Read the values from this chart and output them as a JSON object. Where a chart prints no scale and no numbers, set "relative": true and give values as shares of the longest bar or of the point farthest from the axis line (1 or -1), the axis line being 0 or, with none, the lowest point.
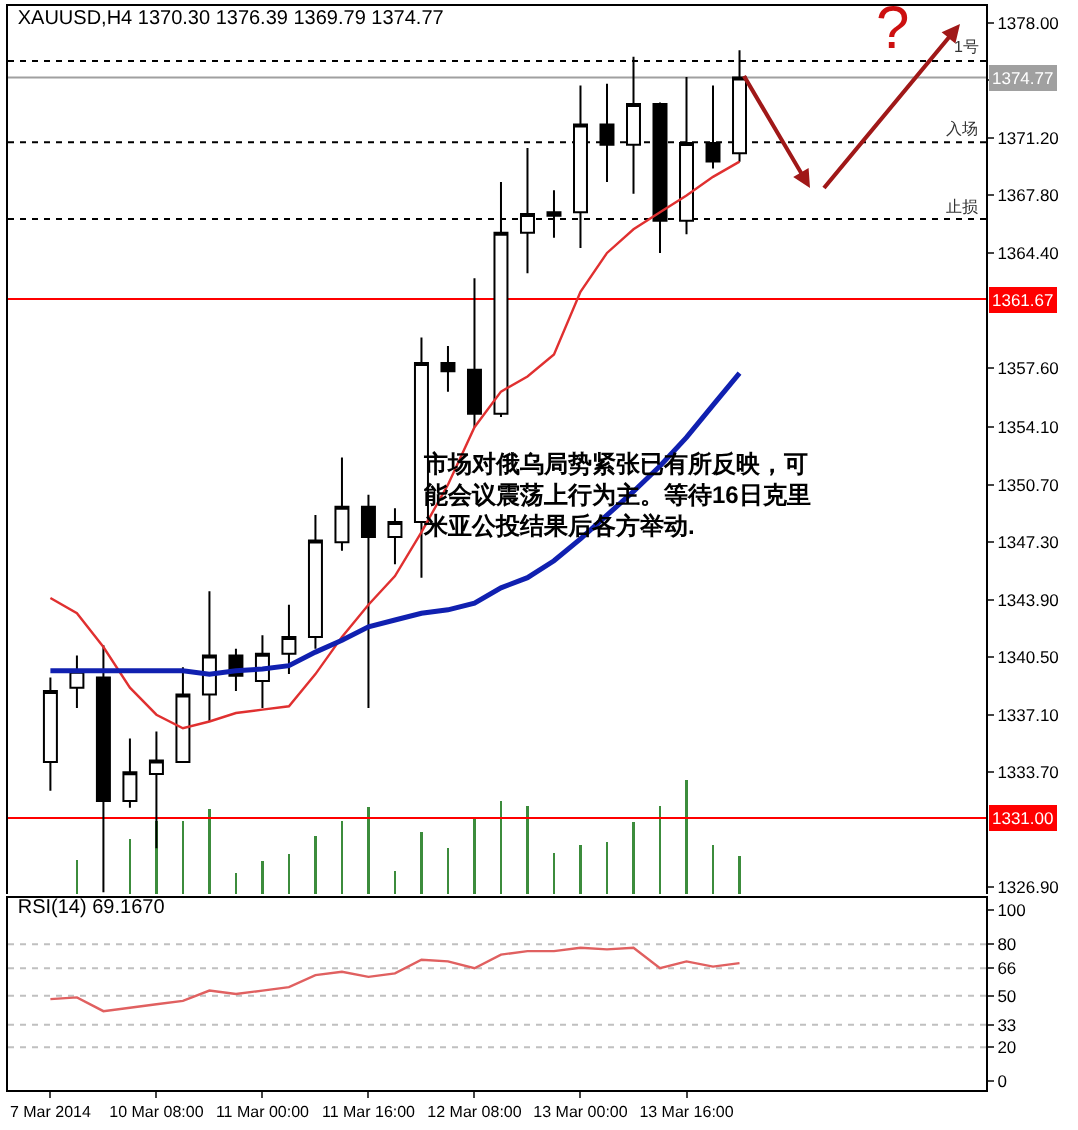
{
  "chart_data": [
    {
      "type": "candlestick",
      "title": "XAUUSD,H4 1370.30 1376.39 1369.79 1374.77",
      "categories": [
        null,
        null,
        null,
        null,
        null,
        null,
        null,
        null,
        null,
        null,
        null,
        null,
        null,
        null,
        null,
        null,
        null,
        null,
        null,
        null,
        null,
        null,
        null,
        null,
        null,
        null,
        null
      ],
      "ohlc": [
        [
          1334.3,
          1339.3,
          1332.6,
          1338.5
        ],
        [
          1338.7,
          1340.6,
          1337.5,
          1339.7
        ],
        [
          1339.3,
          1341.2,
          1326.6,
          1332.0
        ],
        [
          1332.0,
          1335.7,
          1331.6,
          1333.7
        ],
        [
          1333.6,
          1336.1,
          1329.2,
          1334.4
        ],
        [
          1334.3,
          1339.9,
          1334.3,
          1338.3
        ],
        [
          1338.3,
          1344.4,
          1336.7,
          1340.6
        ],
        [
          1340.6,
          1341.0,
          1338.5,
          1339.4
        ],
        [
          1339.1,
          1341.8,
          1337.5,
          1340.7
        ],
        [
          1340.7,
          1343.6,
          1339.5,
          1341.7
        ],
        [
          1341.7,
          1348.9,
          1341.0,
          1347.4
        ],
        [
          1347.3,
          1352.3,
          1346.8,
          1349.4
        ],
        [
          1349.4,
          1350.1,
          1337.5,
          1347.6
        ],
        [
          1347.6,
          1349.3,
          1346.0,
          1348.5
        ],
        [
          1348.5,
          1359.4,
          1345.2,
          1357.9
        ],
        [
          1357.9,
          1358.9,
          1356.2,
          1357.4
        ],
        [
          1357.5,
          1362.9,
          1354.1,
          1354.9
        ],
        [
          1354.9,
          1368.6,
          1354.7,
          1365.6
        ],
        [
          1365.6,
          1370.6,
          1363.2,
          1366.7
        ],
        [
          1366.8,
          1368.1,
          1365.3,
          1366.6
        ],
        [
          1366.8,
          1374.3,
          1364.7,
          1372.0
        ],
        [
          1372.0,
          1374.4,
          1368.6,
          1370.8
        ],
        [
          1370.8,
          1376.0,
          1367.9,
          1373.2
        ],
        [
          1373.2,
          1373.3,
          1364.4,
          1366.3
        ],
        [
          1366.3,
          1374.8,
          1365.5,
          1370.9
        ],
        [
          1370.9,
          1374.3,
          1369.4,
          1369.8
        ],
        [
          1370.3,
          1376.39,
          1369.79,
          1374.77
        ]
      ],
      "series": [
        {
          "type": "line",
          "color": "#e03030",
          "values": [
            1344.0,
            1343.1,
            1341.1,
            1338.7,
            1337.1,
            1336.3,
            1336.7,
            1337.2,
            1337.4,
            1337.6,
            1339.5,
            1341.7,
            1343.6,
            1345.3,
            1347.9,
            1350.7,
            1354.1,
            1356.2,
            1357.1,
            1358.4,
            1362.1,
            1364.4,
            1365.8,
            1366.8,
            1367.8,
            1368.9,
            1369.8
          ]
        },
        {
          "type": "line",
          "color": "#1020b0",
          "values": [
            1339.7,
            1339.7,
            1339.7,
            1339.7,
            1339.7,
            1339.7,
            1339.5,
            1339.7,
            1339.8,
            1340.0,
            1340.8,
            1341.5,
            1342.3,
            1342.7,
            1343.1,
            1343.3,
            1343.7,
            1344.6,
            1345.2,
            1346.2,
            1347.5,
            1348.9,
            1350.3,
            1351.8,
            1353.5,
            1355.4,
            1357.3
          ]
        }
      ],
      "ylim": [
        1326.5,
        1379.0
      ],
      "yticks": [
        {
          "value": 1378.0,
          "label": "1378.00"
        },
        {
          "value": 1374.6,
          "label": null
        },
        {
          "value": 1371.2,
          "label": "1371.20"
        },
        {
          "value": 1367.8,
          "label": "1367.80"
        },
        {
          "value": 1364.4,
          "label": "1364.40"
        },
        {
          "value": 1357.6,
          "label": "1357.60"
        },
        {
          "value": 1354.1,
          "label": "1354.10"
        },
        {
          "value": 1350.7,
          "label": "1350.70"
        },
        {
          "value": 1347.3,
          "label": "1347.30"
        },
        {
          "value": 1343.9,
          "label": "1343.90"
        },
        {
          "value": 1340.5,
          "label": "1340.50"
        },
        {
          "value": 1337.1,
          "label": "1337.10"
        },
        {
          "value": 1333.7,
          "label": "1333.70"
        },
        {
          "value": 1326.9,
          "label": "1326.90"
        }
      ],
      "ref_lines": [
        {
          "axis": "y",
          "value": 1361.67,
          "label": "1361.67",
          "color": "#ff0000",
          "line_style": "solid"
        },
        {
          "axis": "y",
          "value": 1331.0,
          "label": "1331.00",
          "color": "#ff0000",
          "line_style": "solid"
        },
        {
          "axis": "y",
          "value": 1374.77,
          "label": "1374.77",
          "color": "#a0a0a0",
          "line_style": "solid"
        },
        {
          "axis": "y",
          "value": 1375.75,
          "label": "1号",
          "color": "#000000",
          "line_style": "dotted"
        },
        {
          "axis": "y",
          "value": 1370.95,
          "label": "入场",
          "color": "#000000",
          "line_style": "dotted"
        },
        {
          "axis": "y",
          "value": 1366.4,
          "label": "止损",
          "color": "#000000",
          "line_style": "dotted"
        }
      ],
      "annotations": [
        "市场对俄乌局势紧张已有所反映，可能会议震荡上行为主。等待16日克里米亚公投结果后各方举动.",
        "?"
      ],
      "tick_labels": "y"
    },
    {
      "type": "bar",
      "relative": true,
      "color": "#3c8c3c",
      "tick_labels": false,
      "categories": [
        null,
        null,
        null,
        null,
        null,
        null,
        null,
        null,
        null,
        null,
        null,
        null,
        null,
        null,
        null,
        null,
        null,
        null,
        null,
        null,
        null,
        null,
        null,
        null,
        null,
        null,
        null
      ],
      "values": [
        null,
        0.3,
        null,
        0.48,
        0.64,
        0.64,
        0.75,
        0.18,
        0.29,
        0.35,
        0.51,
        0.64,
        0.76,
        0.2,
        0.54,
        0.4,
        0.67,
        0.82,
        0.77,
        0.36,
        0.43,
        0.46,
        0.63,
        0.77,
        1,
        0.43,
        0.33
      ]
    },
    {
      "type": "line",
      "title": "RSI(14) 69.1670",
      "categories": [
        "7 Mar 2014",
        null,
        null,
        null,
        "10 Mar 08:00",
        null,
        null,
        null,
        "11 Mar 00:00",
        null,
        null,
        null,
        "11 Mar 16:00",
        null,
        null,
        null,
        "12 Mar 08:00",
        null,
        null,
        null,
        "13 Mar 00:00",
        null,
        null,
        null,
        "13 Mar 16:00",
        null,
        null
      ],
      "series": [
        {
          "color": "#e06060",
          "values": [
            48,
            49,
            41,
            43,
            45,
            47,
            53,
            51,
            53,
            55,
            62,
            64,
            61,
            63,
            71,
            70,
            66,
            74,
            76,
            76,
            78,
            77,
            78,
            66,
            70,
            67,
            69
          ]
        }
      ],
      "ylim": [
        -5,
        107
      ],
      "yticks": [
        0,
        20,
        33,
        50,
        66,
        80,
        100
      ],
      "ref_lines": [
        {
          "axis": "y",
          "value": 20,
          "color": "#c0c0c0",
          "line_style": "dotted"
        },
        {
          "axis": "y",
          "value": 33,
          "color": "#c0c0c0",
          "line_style": "dotted"
        },
        {
          "axis": "y",
          "value": 50,
          "color": "#c0c0c0",
          "line_style": "dotted"
        },
        {
          "axis": "y",
          "value": 66,
          "color": "#c0c0c0",
          "line_style": "dotted"
        },
        {
          "axis": "y",
          "value": 80,
          "color": "#c0c0c0",
          "line_style": "dotted"
        }
      ]
    }
  ]
}
